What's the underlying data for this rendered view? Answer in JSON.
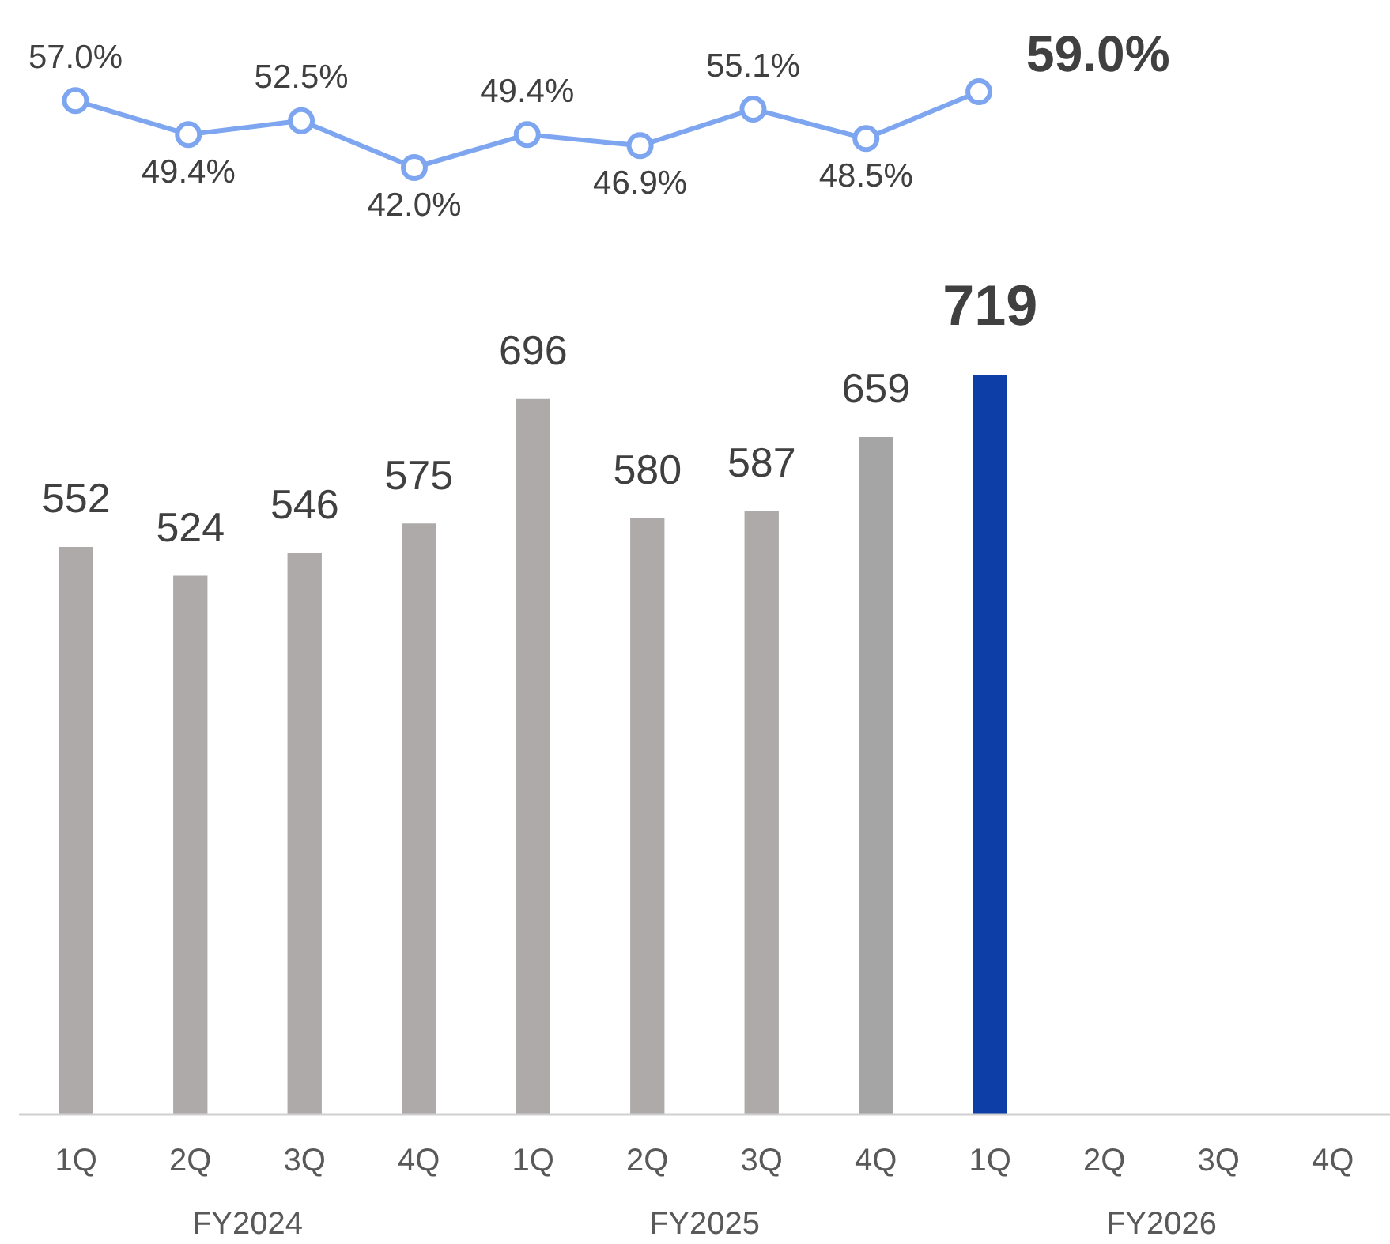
{
  "chart_data": [
    {
      "type": "line",
      "categories": [
        null,
        null,
        null,
        null,
        null,
        null,
        null,
        null,
        null,
        null,
        null,
        null
      ],
      "series": [
        {
          "color": "#7ea6f0",
          "values": [
            57.0,
            49.4,
            52.5,
            42.0,
            49.4,
            46.9,
            55.1,
            48.5,
            59.0,
            null,
            null,
            null
          ],
          "value_labels": [
            "57.0%",
            "49.4%",
            "52.5%",
            "42.0%",
            "49.4%",
            "46.9%",
            "55.1%",
            "48.5%",
            "59.0%",
            null,
            null,
            null
          ]
        }
      ],
      "marker": "circle",
      "grid": false,
      "legend": false,
      "tick_labels": false
    },
    {
      "type": "bar",
      "categories": [
        "1Q",
        "2Q",
        "3Q",
        "4Q",
        "1Q",
        "2Q",
        "3Q",
        "4Q",
        "1Q",
        "2Q",
        "3Q",
        "4Q"
      ],
      "series": [
        {
          "values": [
            552,
            524,
            546,
            575,
            696,
            580,
            587,
            659,
            719,
            null,
            null,
            null
          ],
          "colors": [
            "#aeaaaa",
            "#aeaaaa",
            "#aeaaaa",
            "#aeaaaa",
            "#aeaaaa",
            "#aeaaaa",
            "#aeaaaa",
            "#a5a5a5",
            "#0d3ea8",
            null,
            null,
            null
          ]
        }
      ],
      "data_labels": true,
      "grid": false,
      "legend": false,
      "tick_labels": "x",
      "annotations": [
        "FY2024",
        "FY2025",
        "FY2026"
      ]
    }
  ]
}
